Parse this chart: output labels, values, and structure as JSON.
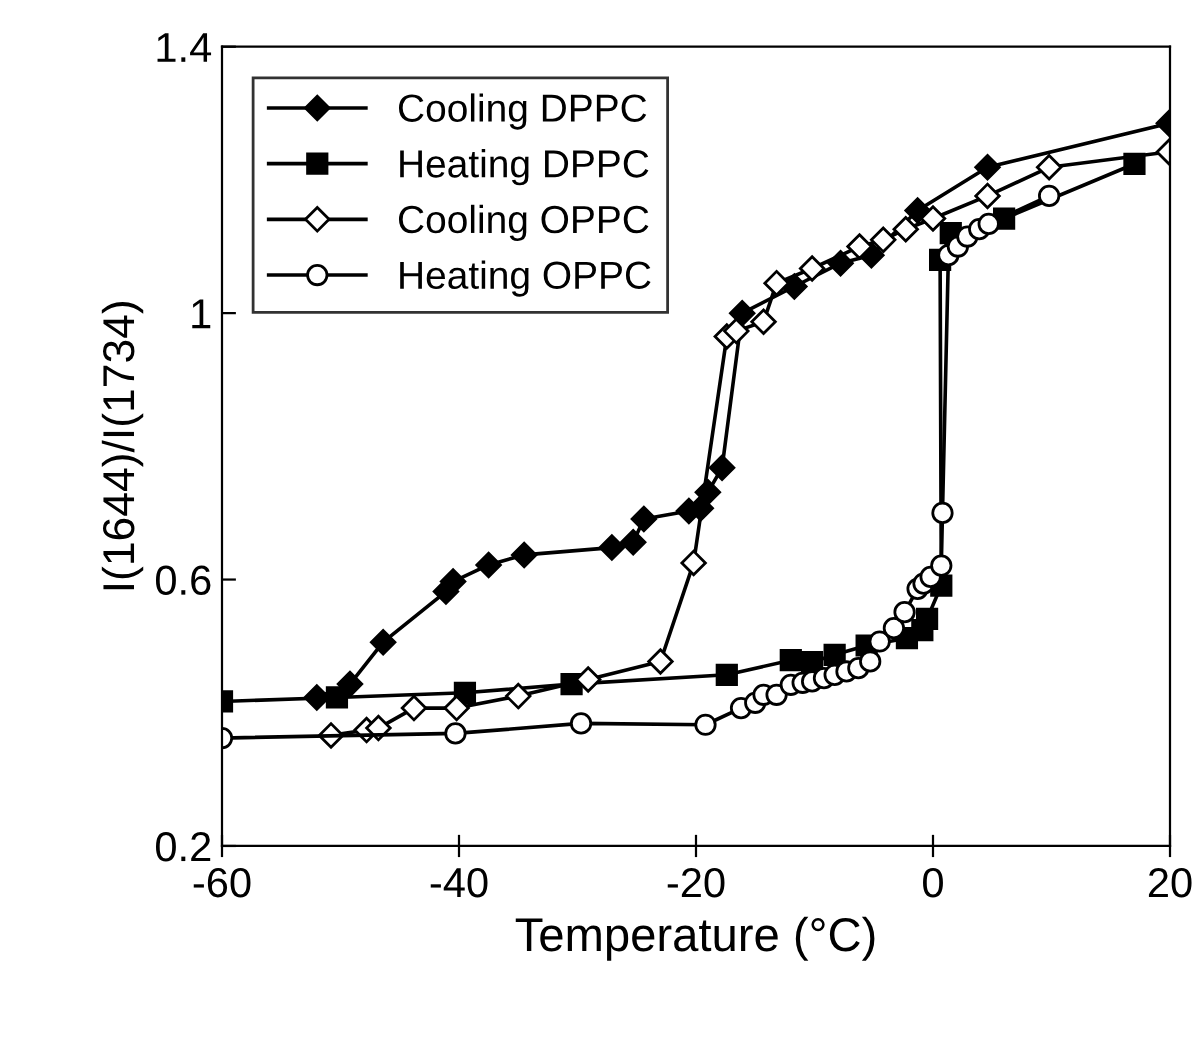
{
  "chart_data": {
    "type": "line",
    "xlabel": "Temperature (°C)",
    "ylabel": "I(1644)/I(1734)",
    "xlim": [
      -60,
      20
    ],
    "ylim": [
      0.2,
      1.4
    ],
    "xticks": [
      -60,
      -40,
      -20,
      0,
      20
    ],
    "yticks": [
      0.2,
      0.6,
      1,
      1.4
    ],
    "grid": false,
    "legend": "top left",
    "series": [
      {
        "name": "Cooling DPPC",
        "color": "#000000",
        "marker": "diamond",
        "x": [
          -52.0,
          -49.2,
          -46.4,
          -41.1,
          -40.5,
          -37.5,
          -34.5,
          -27.1,
          -25.3,
          -24.4,
          -20.6,
          -19.6,
          -19.0,
          -17.8,
          -16.1,
          -11.7,
          -7.8,
          -5.2,
          -1.3,
          4.6,
          19.9
        ],
        "values": [
          0.423,
          0.443,
          0.506,
          0.582,
          0.597,
          0.622,
          0.637,
          0.648,
          0.656,
          0.691,
          0.703,
          0.707,
          0.731,
          0.768,
          1.0,
          1.04,
          1.075,
          1.087,
          1.154,
          1.219,
          1.285
        ]
      },
      {
        "name": "Heating DPPC",
        "color": "#000000",
        "marker": "square",
        "x": [
          -60,
          -50.3,
          -39.5,
          -30.5,
          -17.4,
          -12.0,
          -10.2,
          -8.3,
          -5.6,
          -2.2,
          -0.9,
          -0.5,
          0.7,
          0.6,
          1.5,
          6.0,
          17.0
        ],
        "values": [
          0.417,
          0.423,
          0.43,
          0.443,
          0.457,
          0.479,
          0.476,
          0.487,
          0.501,
          0.512,
          0.524,
          0.541,
          0.591,
          1.08,
          1.12,
          1.142,
          1.224
        ]
      },
      {
        "name": "Cooling OPPC",
        "color": "#ffffff",
        "marker": "diamond",
        "x": [
          -50.8,
          -47.8,
          -46.8,
          -43.8,
          -40.2,
          -35.0,
          -29.1,
          -23.0,
          -20.2,
          -17.4,
          -16.6,
          -14.3,
          -13.2,
          -10.2,
          -6.2,
          -4.2,
          -2.3,
          0.0,
          4.6,
          9.8,
          19.9
        ],
        "values": [
          0.366,
          0.374,
          0.377,
          0.407,
          0.407,
          0.425,
          0.45,
          0.477,
          0.625,
          0.965,
          0.973,
          0.987,
          1.045,
          1.067,
          1.1,
          1.11,
          1.126,
          1.142,
          1.176,
          1.219,
          1.242
        ]
      },
      {
        "name": "Heating OPPC",
        "color": "#ffffff",
        "marker": "circle",
        "x": [
          -60,
          -40.3,
          -29.7,
          -19.2,
          -16.2,
          -15.0,
          -14.3,
          -13.2,
          -12.0,
          -11.0,
          -10.2,
          -9.2,
          -8.3,
          -7.3,
          -6.3,
          -5.3,
          -4.5,
          -3.3,
          -2.4,
          -1.3,
          -0.8,
          -0.2,
          0.7,
          0.8,
          1.3,
          2.1,
          2.9,
          3.9,
          4.7,
          9.8
        ],
        "values": [
          0.362,
          0.369,
          0.384,
          0.382,
          0.407,
          0.415,
          0.427,
          0.427,
          0.442,
          0.445,
          0.447,
          0.452,
          0.457,
          0.462,
          0.467,
          0.477,
          0.507,
          0.527,
          0.551,
          0.586,
          0.594,
          0.604,
          0.621,
          0.7,
          1.087,
          1.1,
          1.115,
          1.126,
          1.134,
          1.176
        ]
      }
    ]
  }
}
